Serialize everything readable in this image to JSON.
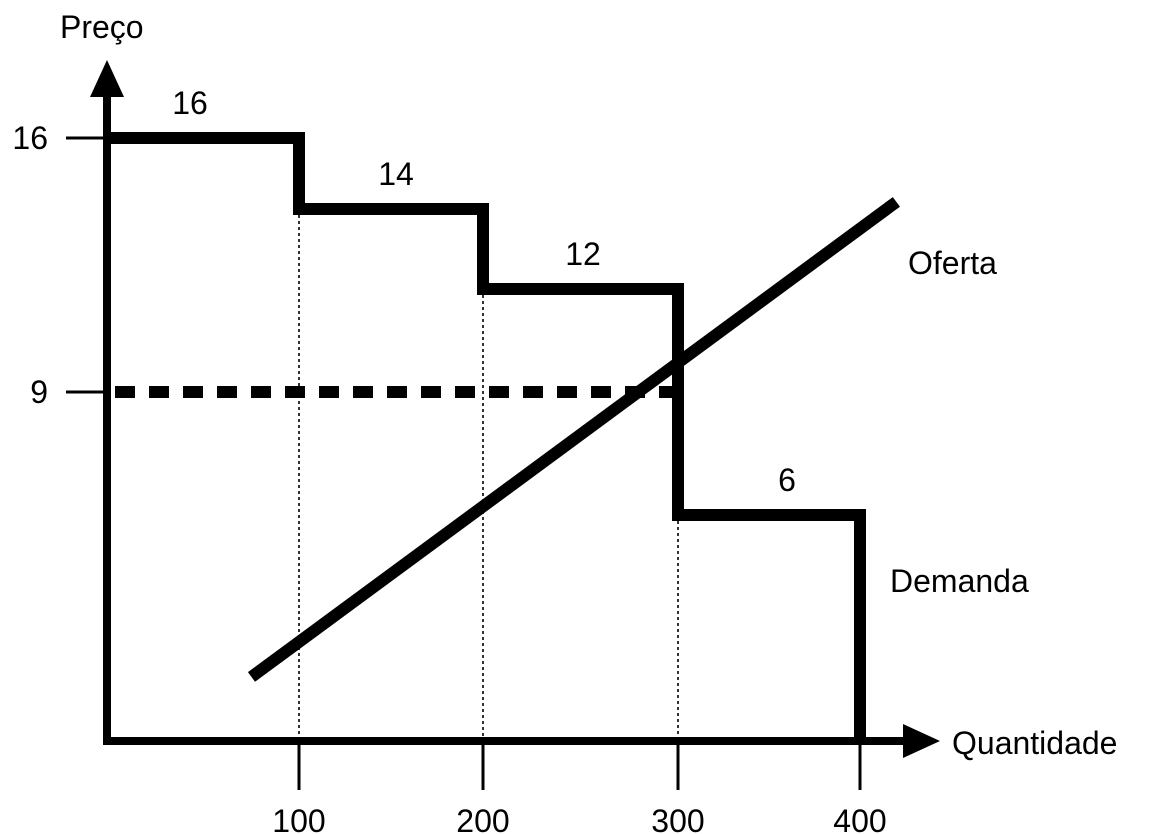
{
  "chart_data": {
    "type": "line",
    "ylabel": "Preço",
    "xlabel": "Quantidade",
    "xlim": [
      0,
      400
    ],
    "x_ticks": [
      100,
      200,
      300,
      400
    ],
    "y_ticks": [
      16,
      9
    ],
    "equilibrium": {
      "price": 9,
      "quantity": 300
    },
    "demand": {
      "name": "Demanda",
      "steps": [
        {
          "from": 0,
          "to": 100,
          "price": 16,
          "label": "16"
        },
        {
          "from": 100,
          "to": 200,
          "price": 14,
          "label": "14"
        },
        {
          "from": 200,
          "to": 300,
          "price": 12,
          "label": "12"
        },
        {
          "from": 300,
          "to": 400,
          "price": 6,
          "label": "6"
        }
      ]
    },
    "supply": {
      "name": "Oferta",
      "points": [
        {
          "x": 75,
          "y": 1.7
        },
        {
          "x": 420,
          "y": 14.2
        }
      ]
    },
    "colors": {
      "line": "#000000",
      "background": "#ffffff"
    }
  }
}
